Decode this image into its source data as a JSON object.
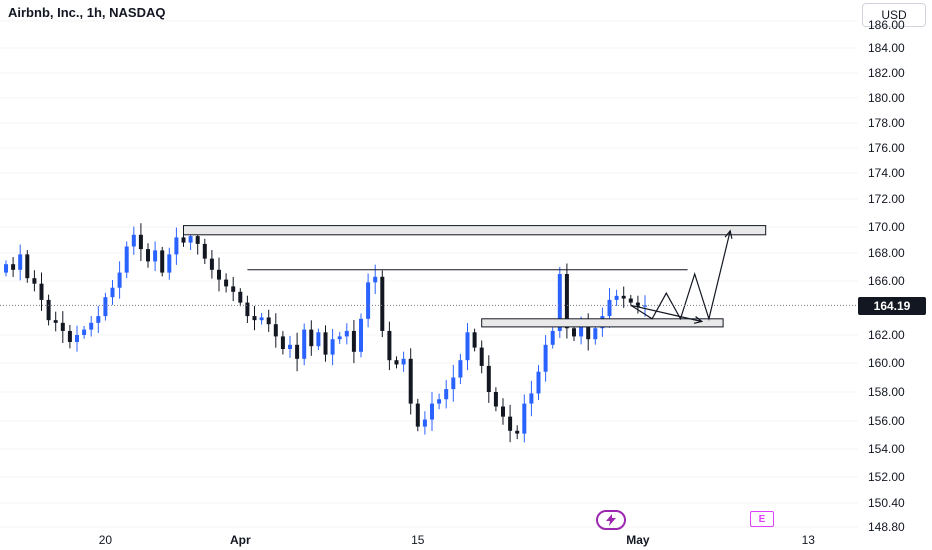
{
  "title": "Airbnb, Inc., 1h, NASDAQ",
  "currency": "USD",
  "last_price": "164.19",
  "events": {
    "dividends_icon": "lightning-icon",
    "earnings_label": "E"
  },
  "colors": {
    "up": "#2962ff",
    "down": "#131722",
    "zone_fill": "#e9e9e9",
    "zone_stroke": "#131722",
    "event": "#9c27b0"
  },
  "chart_data": {
    "type": "candlestick",
    "title": "Airbnb, Inc., 1h, NASDAQ",
    "ylim": [
      148.8,
      186.5
    ],
    "y_ticks": [
      186.0,
      184.0,
      182.0,
      180.0,
      178.0,
      176.0,
      174.0,
      172.0,
      170.0,
      168.0,
      166.0,
      162.0,
      160.0,
      158.0,
      156.0,
      154.0,
      152.0,
      150.4,
      148.8
    ],
    "y_tick_labels": [
      "186.00",
      "184.00",
      "182.00",
      "180.00",
      "178.00",
      "176.00",
      "174.00",
      "172.00",
      "170.00",
      "168.00",
      "166.00",
      "162.00",
      "160.00",
      "158.00",
      "156.00",
      "154.00",
      "152.00",
      "150.40",
      "148.80"
    ],
    "x_ticks": [
      {
        "label": "20",
        "bar": 14
      },
      {
        "label": "Apr",
        "bar": 33
      },
      {
        "label": "15",
        "bar": 58
      },
      {
        "label": "May",
        "bar": 89
      },
      {
        "label": "13",
        "bar": 113
      }
    ],
    "x_range": [
      0,
      125
    ],
    "last_price": 164.19,
    "closes": [
      167.2,
      166.8,
      167.9,
      166.2,
      165.8,
      164.6,
      163.1,
      162.9,
      162.3,
      161.5,
      162.0,
      162.4,
      162.9,
      163.4,
      164.8,
      165.5,
      166.6,
      168.5,
      169.4,
      168.3,
      167.4,
      168.2,
      166.6,
      167.9,
      169.2,
      168.8,
      169.3,
      168.7,
      167.6,
      166.8,
      166.1,
      165.6,
      165.2,
      164.4,
      163.4,
      163.1,
      163.3,
      162.8,
      161.9,
      161.0,
      161.3,
      160.3,
      162.4,
      161.2,
      162.2,
      160.6,
      161.7,
      161.9,
      162.3,
      160.8,
      163.2,
      165.9,
      166.3,
      162.3,
      160.2,
      159.9,
      160.3,
      157.2,
      155.6,
      156.1,
      157.2,
      157.5,
      158.2,
      159.0,
      160.2,
      162.2,
      161.1,
      159.8,
      158.0,
      157.0,
      156.3,
      155.3,
      155.1,
      157.2,
      157.9,
      159.4,
      161.3,
      162.3,
      166.5,
      162.5,
      161.9,
      162.8,
      161.7,
      162.5,
      163.4,
      164.6,
      164.9,
      164.7,
      164.4,
      164.1,
      164.19
    ],
    "resistance_zone": {
      "low": 169.4,
      "high": 170.1,
      "from_bar": 25,
      "to_bar": 107
    },
    "support_zone": {
      "low": 162.6,
      "high": 163.2,
      "from_bar": 67,
      "to_bar": 101
    },
    "horizontal_line": {
      "value": 166.8,
      "from_bar": 34,
      "to_bar": 96
    },
    "projection_path": [
      [
        88,
        164.2
      ],
      [
        91,
        163.2
      ],
      [
        93,
        165.1
      ],
      [
        95,
        163.2
      ],
      [
        97,
        166.5
      ],
      [
        99,
        163.2
      ],
      [
        102,
        169.7
      ]
    ],
    "projection_alt_path": [
      [
        88,
        164.2
      ],
      [
        98,
        163.0
      ]
    ]
  }
}
